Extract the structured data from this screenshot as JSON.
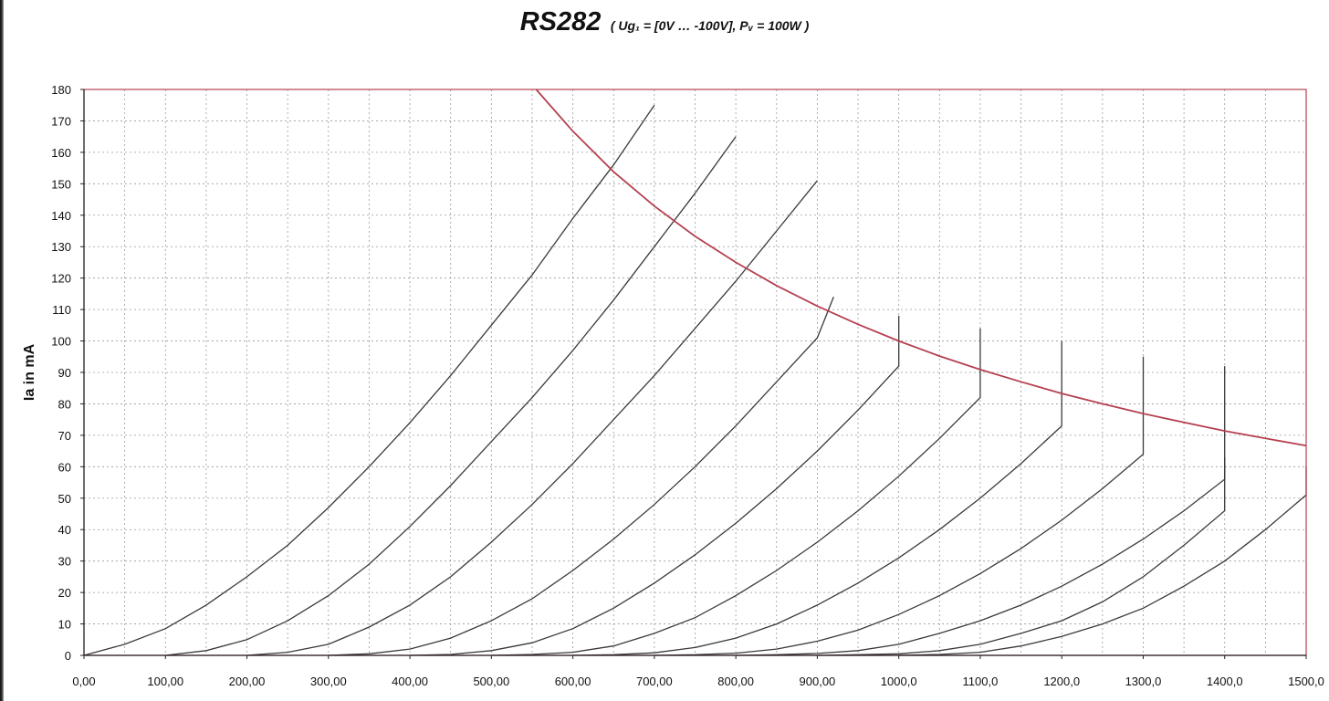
{
  "title_main": "RS282",
  "title_sub": "( Ug₁ = [0V … -100V], Pᵥ = 100W )",
  "chart_data": {
    "type": "line",
    "title": "RS282",
    "subtitle": "( Ug₁ = [0V … -100V], Pᵥ = 100W )",
    "ylabel": "Ia in mA",
    "xlabel": "",
    "xlim": [
      0,
      1500
    ],
    "ylim": [
      0,
      180
    ],
    "grid": true,
    "x_tick_labels": [
      "0,00",
      "100,00",
      "200,00",
      "300,00",
      "400,00",
      "500,00",
      "600,00",
      "700,00",
      "800,00",
      "900,00",
      "1000,0",
      "1100,0",
      "1200,0",
      "1300,0",
      "1400,0",
      "1500,0"
    ],
    "y_tick_labels": [
      "0",
      "10",
      "20",
      "30",
      "40",
      "50",
      "60",
      "70",
      "80",
      "90",
      "100",
      "110",
      "120",
      "130",
      "140",
      "150",
      "160",
      "170",
      "180"
    ],
    "series": [
      {
        "points": [
          [
            0,
            0
          ],
          [
            50,
            3.5
          ],
          [
            100,
            8.5
          ],
          [
            150,
            16
          ],
          [
            200,
            25
          ],
          [
            250,
            35
          ],
          [
            300,
            47
          ],
          [
            350,
            60
          ],
          [
            400,
            74
          ],
          [
            450,
            89
          ],
          [
            500,
            105
          ],
          [
            550,
            121
          ],
          [
            600,
            139
          ],
          [
            650,
            156
          ],
          [
            700,
            175
          ]
        ]
      },
      {
        "points": [
          [
            100,
            0
          ],
          [
            150,
            1.5
          ],
          [
            200,
            5
          ],
          [
            250,
            11
          ],
          [
            300,
            19
          ],
          [
            350,
            29
          ],
          [
            400,
            41
          ],
          [
            450,
            54
          ],
          [
            500,
            68
          ],
          [
            550,
            82
          ],
          [
            600,
            97
          ],
          [
            650,
            113
          ],
          [
            700,
            130
          ],
          [
            750,
            147
          ],
          [
            800,
            165
          ]
        ]
      },
      {
        "points": [
          [
            200,
            0
          ],
          [
            250,
            1
          ],
          [
            300,
            3.5
          ],
          [
            350,
            9
          ],
          [
            400,
            16
          ],
          [
            450,
            25
          ],
          [
            500,
            36
          ],
          [
            550,
            48
          ],
          [
            600,
            61
          ],
          [
            650,
            75
          ],
          [
            700,
            89
          ],
          [
            750,
            104
          ],
          [
            800,
            119
          ],
          [
            850,
            135
          ],
          [
            900,
            151
          ]
        ]
      },
      {
        "points": [
          [
            300,
            0
          ],
          [
            350,
            0.5
          ],
          [
            400,
            2
          ],
          [
            450,
            5.5
          ],
          [
            500,
            11
          ],
          [
            550,
            18
          ],
          [
            600,
            27
          ],
          [
            650,
            37
          ],
          [
            700,
            48
          ],
          [
            750,
            60
          ],
          [
            800,
            73
          ],
          [
            850,
            87
          ],
          [
            900,
            101
          ],
          [
            920,
            114
          ]
        ]
      },
      {
        "points": [
          [
            400,
            0
          ],
          [
            450,
            0.3
          ],
          [
            500,
            1.5
          ],
          [
            550,
            4
          ],
          [
            600,
            8.5
          ],
          [
            650,
            15
          ],
          [
            700,
            23
          ],
          [
            750,
            32
          ],
          [
            800,
            42
          ],
          [
            850,
            53
          ],
          [
            900,
            65
          ],
          [
            950,
            78
          ],
          [
            1000,
            92
          ],
          [
            1000,
            108
          ]
        ]
      },
      {
        "points": [
          [
            500,
            0
          ],
          [
            550,
            0.3
          ],
          [
            600,
            1
          ],
          [
            650,
            3
          ],
          [
            700,
            7
          ],
          [
            750,
            12
          ],
          [
            800,
            19
          ],
          [
            850,
            27
          ],
          [
            900,
            36
          ],
          [
            950,
            46
          ],
          [
            1000,
            57
          ],
          [
            1050,
            69
          ],
          [
            1100,
            82
          ],
          [
            1100,
            104
          ]
        ]
      },
      {
        "points": [
          [
            600,
            0
          ],
          [
            650,
            0.2
          ],
          [
            700,
            0.8
          ],
          [
            750,
            2.5
          ],
          [
            800,
            5.5
          ],
          [
            850,
            10
          ],
          [
            900,
            16
          ],
          [
            950,
            23
          ],
          [
            1000,
            31
          ],
          [
            1050,
            40
          ],
          [
            1100,
            50
          ],
          [
            1150,
            61
          ],
          [
            1200,
            73
          ],
          [
            1200,
            100
          ]
        ]
      },
      {
        "points": [
          [
            700,
            0
          ],
          [
            750,
            0.2
          ],
          [
            800,
            0.7
          ],
          [
            850,
            2
          ],
          [
            900,
            4.5
          ],
          [
            950,
            8
          ],
          [
            1000,
            13
          ],
          [
            1050,
            19
          ],
          [
            1100,
            26
          ],
          [
            1150,
            34
          ],
          [
            1200,
            43
          ],
          [
            1250,
            53
          ],
          [
            1300,
            64
          ],
          [
            1300,
            95
          ]
        ]
      },
      {
        "points": [
          [
            800,
            0
          ],
          [
            850,
            0.2
          ],
          [
            900,
            0.6
          ],
          [
            950,
            1.5
          ],
          [
            1000,
            3.5
          ],
          [
            1050,
            7
          ],
          [
            1100,
            11
          ],
          [
            1150,
            16
          ],
          [
            1200,
            22
          ],
          [
            1250,
            29
          ],
          [
            1300,
            37
          ],
          [
            1350,
            46
          ],
          [
            1400,
            56
          ],
          [
            1400,
            92
          ]
        ]
      },
      {
        "points": [
          [
            900,
            0
          ],
          [
            950,
            0.2
          ],
          [
            1000,
            0.5
          ],
          [
            1050,
            1.5
          ],
          [
            1100,
            3.5
          ],
          [
            1150,
            7
          ],
          [
            1200,
            11
          ],
          [
            1250,
            17
          ],
          [
            1300,
            25
          ],
          [
            1350,
            35
          ],
          [
            1400,
            46
          ],
          [
            1400,
            63
          ]
        ]
      },
      {
        "points": [
          [
            1000,
            0
          ],
          [
            1050,
            0.3
          ],
          [
            1100,
            1
          ],
          [
            1150,
            3
          ],
          [
            1200,
            6
          ],
          [
            1250,
            10
          ],
          [
            1300,
            15
          ],
          [
            1350,
            22
          ],
          [
            1400,
            30
          ],
          [
            1450,
            40
          ],
          [
            1500,
            51
          ],
          [
            1500,
            60
          ]
        ]
      }
    ],
    "power_curve": {
      "color": "#b5404f",
      "points": [
        [
          555,
          180
        ],
        [
          600,
          166.7
        ],
        [
          650,
          153.8
        ],
        [
          700,
          142.9
        ],
        [
          750,
          133.3
        ],
        [
          800,
          125
        ],
        [
          850,
          117.6
        ],
        [
          900,
          111.1
        ],
        [
          950,
          105.3
        ],
        [
          1000,
          100
        ],
        [
          1050,
          95.2
        ],
        [
          1100,
          90.9
        ],
        [
          1150,
          87
        ],
        [
          1200,
          83.3
        ],
        [
          1250,
          80
        ],
        [
          1300,
          76.9
        ],
        [
          1350,
          74.1
        ],
        [
          1400,
          71.4
        ],
        [
          1450,
          69
        ],
        [
          1500,
          66.7
        ]
      ]
    },
    "colors": {
      "curves": "#3a3a3a",
      "grid": "#9a9a9a",
      "frame": "#b5404f"
    }
  }
}
